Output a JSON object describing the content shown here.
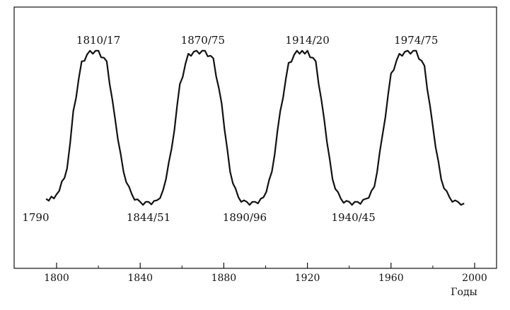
{
  "chart_data": {
    "type": "line",
    "title": "",
    "xlabel": "Годы",
    "ylabel": "",
    "xlim": [
      1780,
      2000
    ],
    "ylim": [
      0,
      1
    ],
    "grid": false,
    "x_ticks": [
      "1800",
      "1840",
      "1880",
      "1920",
      "1960",
      "2000"
    ],
    "series": [
      {
        "x": [
          1795,
          1800,
          1805,
          1808,
          1812,
          1816,
          1820,
          1824,
          1828,
          1832,
          1836,
          1840,
          1844,
          1848,
          1851,
          1855,
          1859,
          1863,
          1867,
          1871,
          1875,
          1879,
          1883,
          1887,
          1891,
          1895,
          1899,
          1903,
          1907,
          1911,
          1915,
          1920,
          1924,
          1928,
          1932,
          1936,
          1940,
          1944,
          1948,
          1952,
          1956,
          1960,
          1964,
          1968,
          1972,
          1976,
          1980,
          1984,
          1988,
          1992,
          1995
        ],
        "y": [
          0.02,
          0.05,
          0.22,
          0.6,
          0.93,
          1.0,
          1.0,
          0.93,
          0.55,
          0.2,
          0.05,
          0.0,
          0.0,
          0.01,
          0.08,
          0.35,
          0.78,
          0.98,
          1.0,
          1.0,
          0.95,
          0.65,
          0.2,
          0.03,
          0.0,
          0.0,
          0.03,
          0.2,
          0.6,
          0.92,
          1.0,
          1.0,
          0.93,
          0.55,
          0.15,
          0.02,
          0.0,
          0.0,
          0.02,
          0.1,
          0.45,
          0.85,
          0.98,
          1.0,
          1.0,
          0.9,
          0.5,
          0.15,
          0.03,
          0.0,
          0.0
        ]
      }
    ],
    "annotations": {
      "peaks": [
        {
          "label": "1810/17",
          "x": 1820
        },
        {
          "label": "1870/75",
          "x": 1870
        },
        {
          "label": "1914/20",
          "x": 1920
        },
        {
          "label": "1974/75",
          "x": 1972
        }
      ],
      "troughs": [
        {
          "label": "1790",
          "x": 1790
        },
        {
          "label": "1844/51",
          "x": 1844
        },
        {
          "label": "1890/96",
          "x": 1890
        },
        {
          "label": "1940/45",
          "x": 1942
        }
      ]
    }
  }
}
